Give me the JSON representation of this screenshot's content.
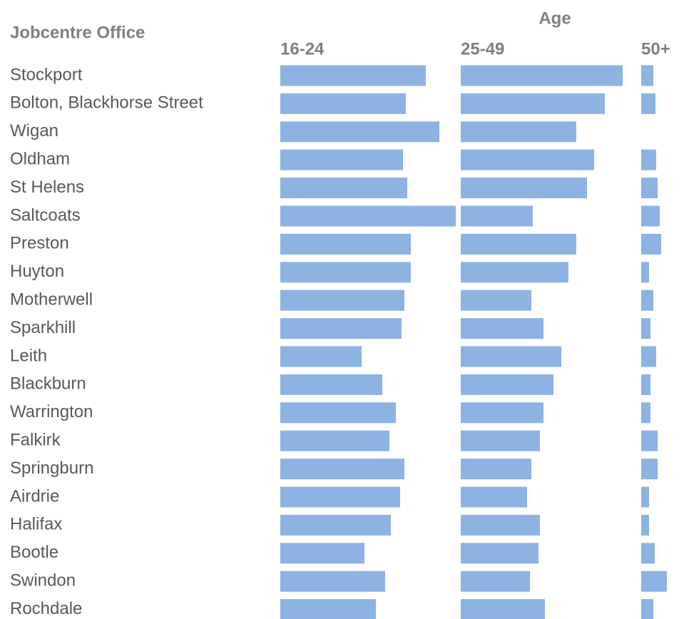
{
  "chart_data": {
    "type": "bar",
    "orientation": "horizontal",
    "title": "Age",
    "category_label": "Jobcentre Office",
    "categories": [
      "Stockport",
      "Bolton, Blackhorse Street",
      "Wigan",
      "Oldham",
      "St Helens",
      "Saltcoats",
      "Preston",
      "Huyton",
      "Motherwell",
      "Sparkhill",
      "Leith",
      "Blackburn",
      "Warrington",
      "Falkirk",
      "Springburn",
      "Airdrie",
      "Halifax",
      "Bootle",
      "Swindon",
      "Rochdale"
    ],
    "xlim": [
      0,
      250
    ],
    "series": [
      {
        "name": "16-24",
        "color": "#8db3e2",
        "values": [
          204,
          176,
          223,
          172,
          178,
          246,
          183,
          183,
          174,
          170,
          114,
          143,
          162,
          153,
          174,
          168,
          155,
          118,
          147,
          134
        ]
      },
      {
        "name": "25-49",
        "color": "#8db3e2",
        "values": [
          227,
          202,
          162,
          187,
          177,
          101,
          162,
          151,
          99,
          116,
          141,
          130,
          116,
          111,
          99,
          93,
          111,
          109,
          97,
          118
        ]
      },
      {
        "name": "50+",
        "color": "#8db3e2",
        "values": [
          17,
          20,
          0,
          21,
          23,
          26,
          28,
          11,
          17,
          13,
          21,
          13,
          13,
          23,
          23,
          11,
          11,
          19,
          36,
          17
        ]
      }
    ]
  }
}
